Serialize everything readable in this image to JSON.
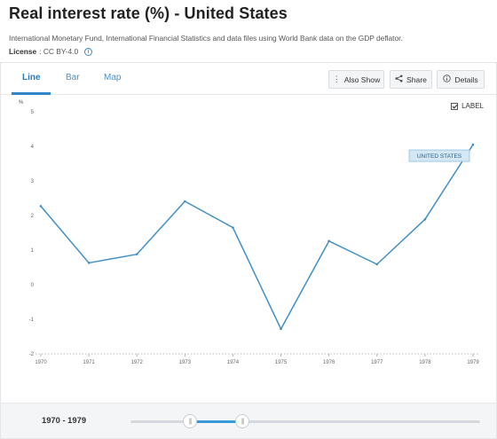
{
  "page": {
    "title": "Real interest rate (%) - United States",
    "source": "International Monetary Fund, International Financial Statistics and data files using World Bank data on the GDP deflator.",
    "license_label": "License",
    "license_value": " : CC BY-4.0"
  },
  "tabs": [
    {
      "label": "Line",
      "active": true
    },
    {
      "label": "Bar",
      "active": false
    },
    {
      "label": "Map",
      "active": false
    }
  ],
  "toolbar": {
    "also_show": "Also Show",
    "share": "Share",
    "details": "Details"
  },
  "label_toggle": {
    "text": "LABEL",
    "checked": true
  },
  "range": {
    "text": "1970 - 1979",
    "start_fraction": 0.17,
    "end_fraction": 0.32
  },
  "colors": {
    "line": "#3f8fc5",
    "accent": "#2e79b9",
    "label_bg": "#d3e7f5"
  },
  "chart_data": {
    "type": "line",
    "ylabel": "%",
    "ylim": [
      -2,
      5
    ],
    "yticks": [
      -2,
      -1,
      0,
      1,
      2,
      3,
      4,
      5
    ],
    "grid": false,
    "x": [
      "1970",
      "1971",
      "1972",
      "1973",
      "1974",
      "1975",
      "1976",
      "1977",
      "1978",
      "1979"
    ],
    "series": [
      {
        "name": "UNITED STATES",
        "values": [
          2.27,
          0.63,
          0.88,
          2.41,
          1.65,
          -1.28,
          1.26,
          0.59,
          1.89,
          4.05
        ]
      }
    ]
  }
}
